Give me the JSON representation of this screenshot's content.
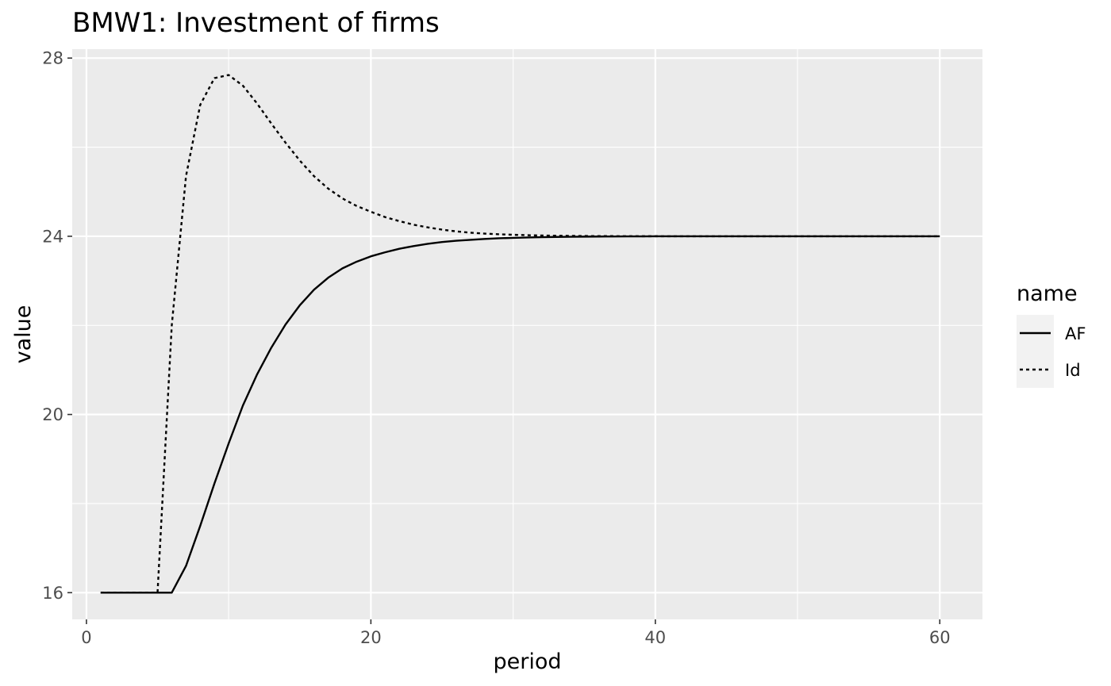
{
  "chart_data": {
    "type": "line",
    "title": "BMW1: Investment of firms",
    "xlabel": "period",
    "ylabel": "value",
    "xlim": [
      -1,
      63
    ],
    "ylim": [
      15.4,
      28.2
    ],
    "x_ticks": [
      0,
      20,
      40,
      60
    ],
    "y_ticks": [
      16,
      20,
      24,
      28
    ],
    "x_tick_labels": [
      "0",
      "20",
      "40",
      "60"
    ],
    "y_tick_labels": [
      "16",
      "20",
      "24",
      "28"
    ],
    "grid": true,
    "panel_background": "#ebebeb",
    "gridline_color": "#ffffff",
    "legend": {
      "title": "name",
      "position": "right",
      "entries": [
        {
          "label": "AF",
          "linetype": "solid"
        },
        {
          "label": "Id",
          "linetype": "dotted"
        }
      ]
    },
    "series": [
      {
        "name": "AF",
        "linetype": "solid",
        "color": "#000000",
        "x": [
          1,
          2,
          3,
          4,
          5,
          6,
          7,
          8,
          9,
          10,
          11,
          12,
          13,
          14,
          15,
          16,
          17,
          18,
          19,
          20,
          21,
          22,
          23,
          24,
          25,
          26,
          27,
          28,
          29,
          30,
          31,
          32,
          33,
          34,
          35,
          36,
          37,
          38,
          39,
          40,
          41,
          42,
          43,
          44,
          45,
          46,
          47,
          48,
          49,
          50,
          51,
          52,
          53,
          54,
          55,
          56,
          57,
          58,
          59,
          60
        ],
        "y": [
          16,
          16,
          16,
          16,
          16,
          16,
          16.6,
          17.5,
          18.45,
          19.35,
          20.2,
          20.9,
          21.5,
          22.02,
          22.45,
          22.8,
          23.07,
          23.28,
          23.43,
          23.55,
          23.64,
          23.72,
          23.78,
          23.83,
          23.87,
          23.9,
          23.92,
          23.94,
          23.955,
          23.965,
          23.973,
          23.98,
          23.985,
          23.989,
          23.992,
          23.994,
          23.996,
          23.997,
          23.998,
          23.999,
          24,
          24,
          24,
          24,
          24,
          24,
          24,
          24,
          24,
          24,
          24,
          24,
          24,
          24,
          24,
          24,
          24,
          24,
          24,
          24
        ]
      },
      {
        "name": "Id",
        "linetype": "dotted",
        "color": "#000000",
        "x": [
          1,
          2,
          3,
          4,
          5,
          6,
          7,
          8,
          9,
          10,
          11,
          12,
          13,
          14,
          15,
          16,
          17,
          18,
          19,
          20,
          21,
          22,
          23,
          24,
          25,
          26,
          27,
          28,
          29,
          30,
          31,
          32,
          33,
          34,
          35,
          36,
          37,
          38,
          39,
          40,
          41,
          42,
          43,
          44,
          45,
          46,
          47,
          48,
          49,
          50,
          51,
          52,
          53,
          54,
          55,
          56,
          57,
          58,
          59,
          60
        ],
        "y": [
          16,
          16,
          16,
          16,
          16,
          22,
          25.35,
          26.95,
          27.55,
          27.62,
          27.38,
          26.98,
          26.53,
          26.1,
          25.7,
          25.35,
          25.07,
          24.85,
          24.68,
          24.55,
          24.43,
          24.34,
          24.26,
          24.2,
          24.15,
          24.11,
          24.08,
          24.06,
          24.045,
          24.033,
          24.024,
          24.017,
          24.012,
          24.009,
          24.006,
          24.004,
          24.003,
          24.002,
          24.001,
          24.001,
          24,
          24,
          24,
          24,
          24,
          24,
          24,
          24,
          24,
          24,
          24,
          24,
          24,
          24,
          24,
          24,
          24,
          24,
          24,
          24
        ]
      }
    ]
  }
}
